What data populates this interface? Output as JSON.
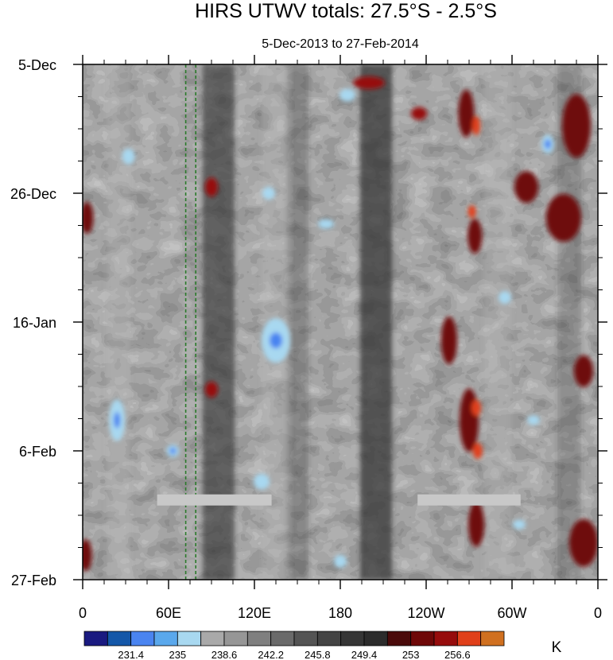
{
  "chart_data": {
    "type": "heatmap",
    "title": "HIRS UTWV totals: 27.5°S - 2.5°S",
    "subtitle": "5-Dec-2013 to 27-Feb-2014",
    "x_ticks": [
      "0",
      "60E",
      "120E",
      "180",
      "120W",
      "60W",
      "0"
    ],
    "x_tick_lon": [
      0,
      60,
      120,
      180,
      240,
      300,
      360
    ],
    "y_ticks": [
      "5-Dec",
      "26-Dec",
      "16-Jan",
      "6-Feb",
      "27-Feb"
    ],
    "y_tick_day": [
      0,
      21,
      42,
      63,
      84
    ],
    "xlim": [
      0,
      360
    ],
    "ylim_days": [
      0,
      84
    ],
    "colorbar": {
      "unit": "K",
      "levels": [
        "231.4",
        "235",
        "238.6",
        "242.2",
        "245.8",
        "249.4",
        "253",
        "256.6"
      ],
      "colors": [
        "#1a1a80",
        "#1457a8",
        "#4a84f0",
        "#5aa8ec",
        "#a8d8f0",
        "#a9a9a9",
        "#969696",
        "#7f7f7f",
        "#6a6a6a",
        "#545454",
        "#444444",
        "#363636",
        "#2c2c2c",
        "#4a0a0a",
        "#6e0808",
        "#960c0c",
        "#e0401a",
        "#d07020"
      ]
    },
    "features": {
      "reference_lines_lon": [
        72,
        79
      ],
      "missing_data_bars": [
        {
          "lon_start": 52,
          "lon_end": 132,
          "day": 71
        },
        {
          "lon_start": 234,
          "lon_end": 306,
          "day": 71
        }
      ]
    }
  }
}
